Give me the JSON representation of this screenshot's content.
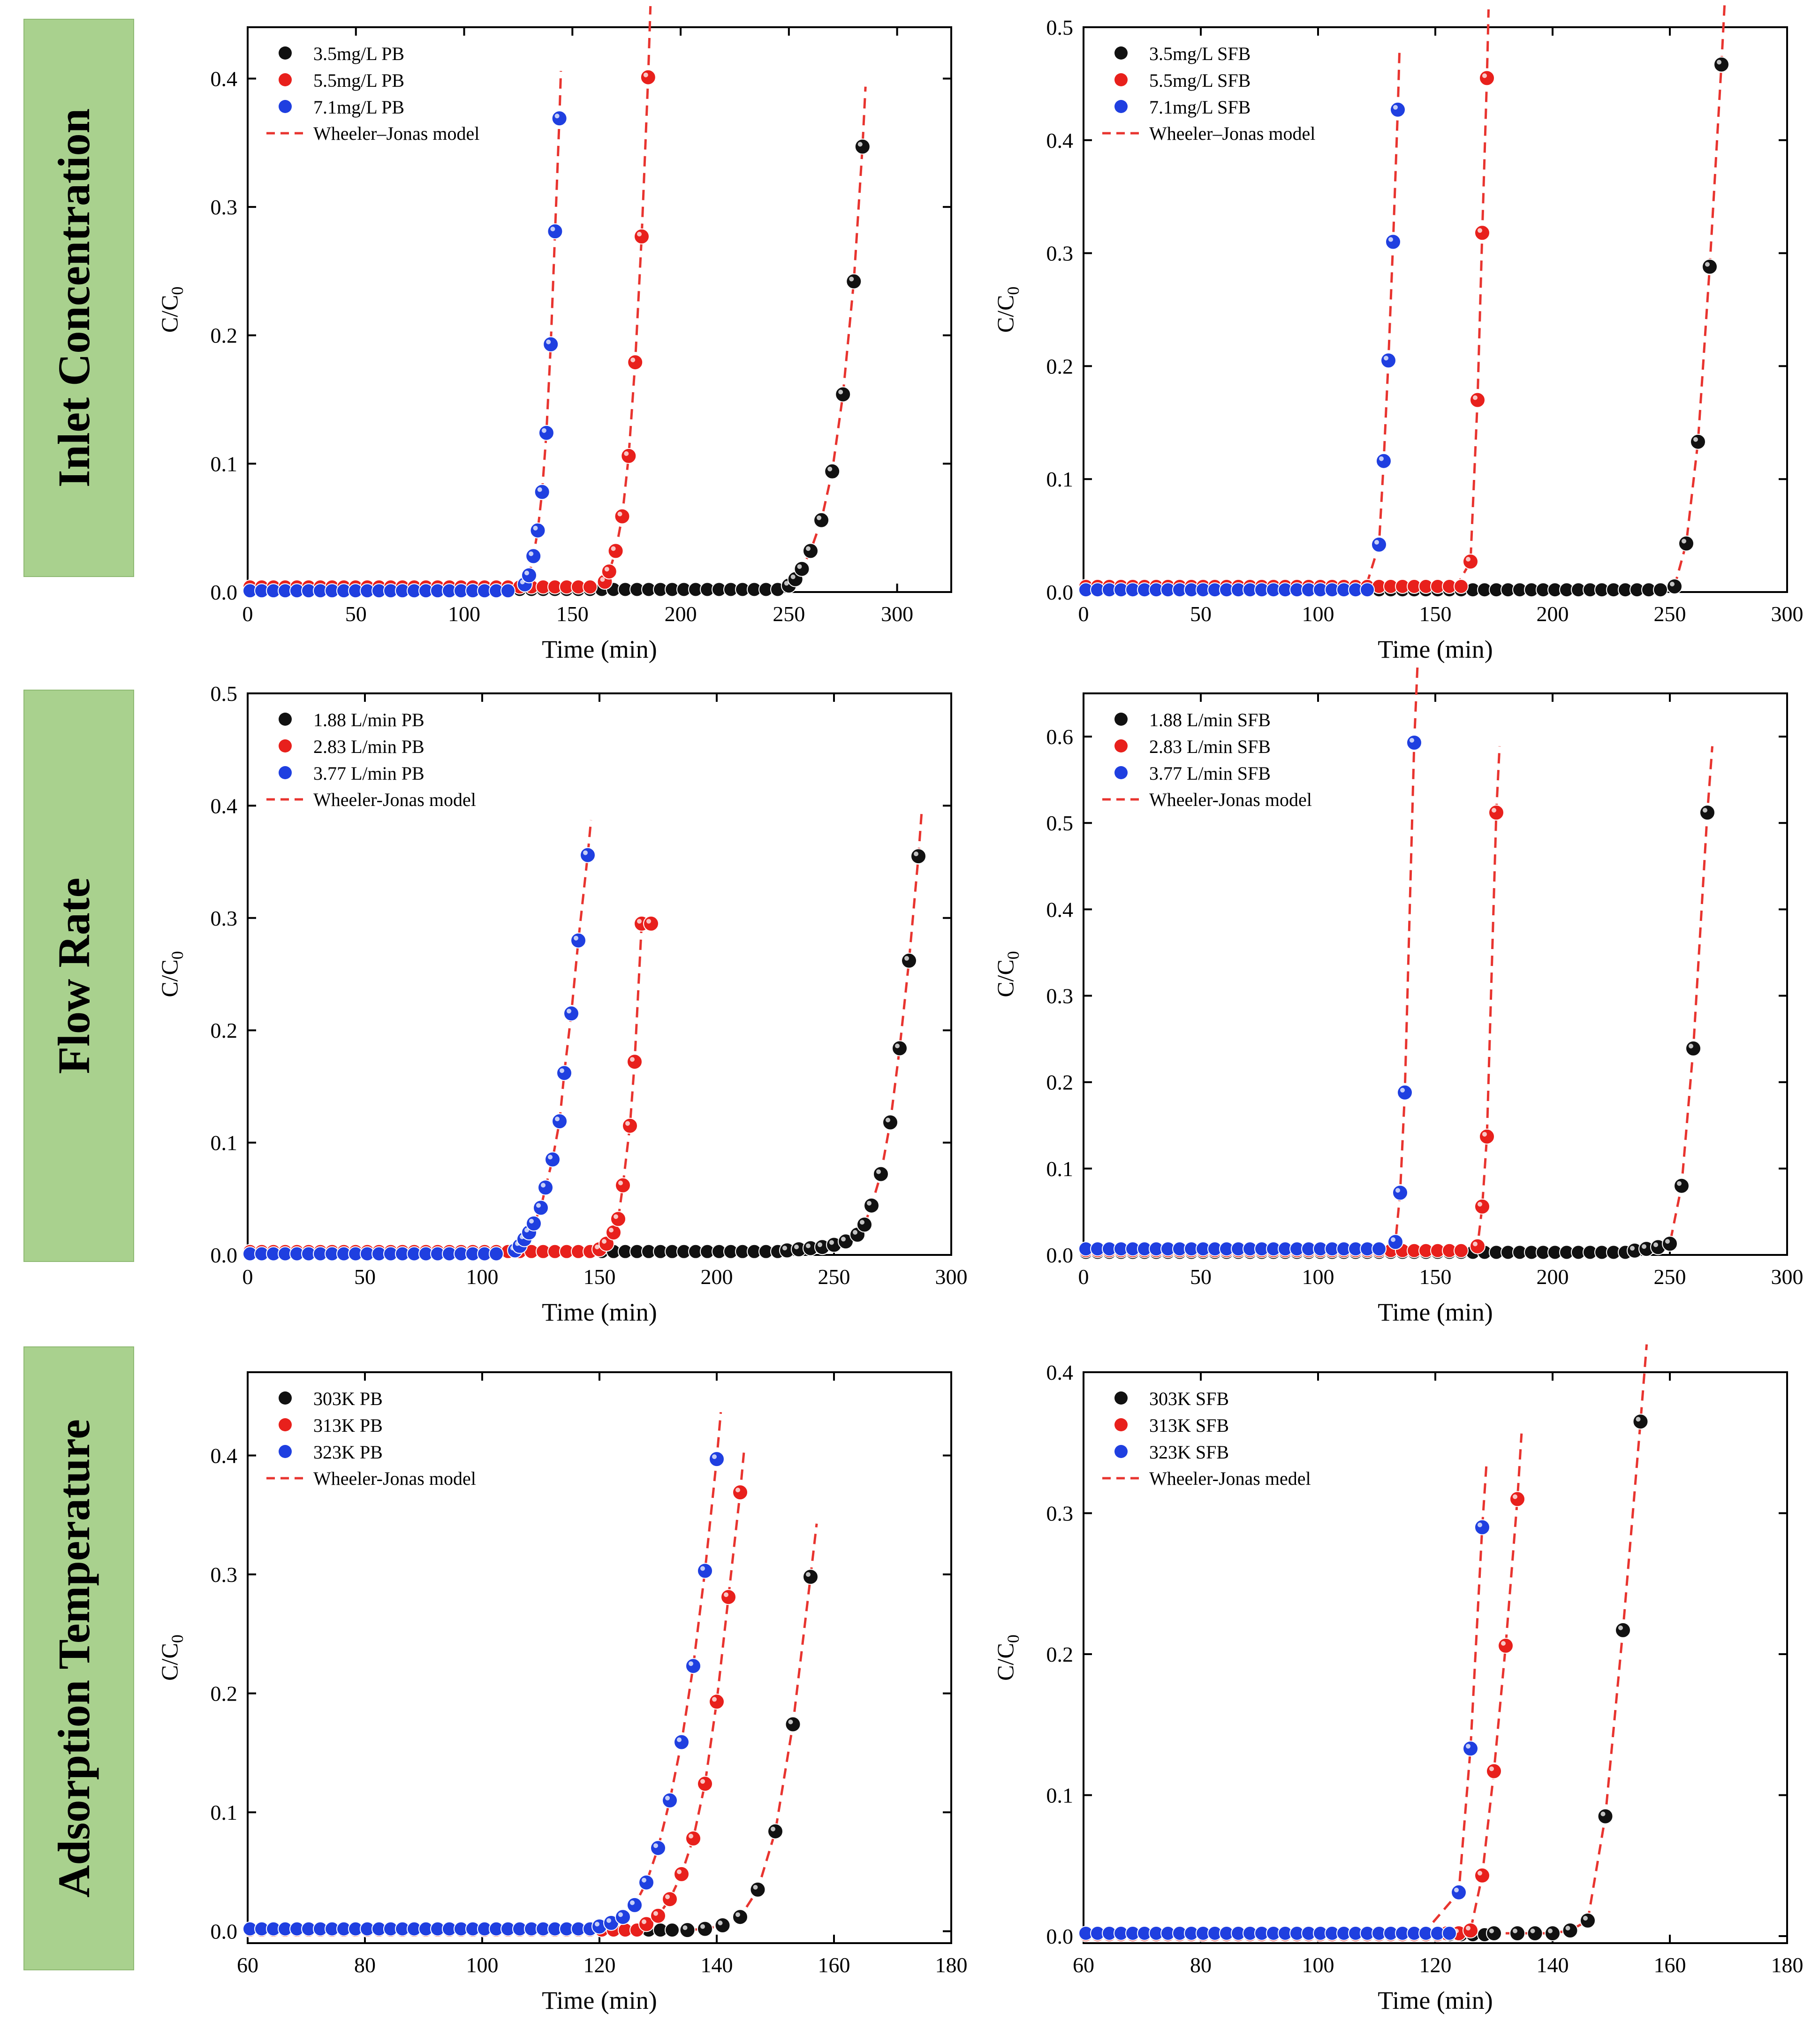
{
  "row_labels": [
    "Inlet Concentration",
    "Flow Rate",
    "Adsorption Temperature"
  ],
  "model_color": "#e8342f",
  "colors": {
    "black": "#111111",
    "red": "#e8201c",
    "blue": "#1f3fe0"
  },
  "chart_data": [
    {
      "id": "c11",
      "type": "scatter",
      "title": "",
      "xlabel": "Time (min)",
      "ylabel": "C/C0",
      "xlim": [
        0,
        325
      ],
      "ylim": [
        0,
        0.44
      ],
      "xticks": [
        0,
        50,
        100,
        150,
        200,
        250,
        300
      ],
      "yticks": [
        0.0,
        0.1,
        0.2,
        0.3,
        0.4
      ],
      "ytick_labels": [
        "0.0",
        "0.1",
        "0.2",
        "0.3",
        "0.4"
      ],
      "legend": [
        "3.5mg/L PB",
        "5.5mg/L PB",
        "7.1mg/L PB",
        "Wheeler–Jonas model"
      ],
      "series": [
        {
          "name": "3.5mg/L PB",
          "color": "black",
          "flat_start": 0,
          "flat_level": 0.002,
          "x": [
            250,
            253,
            256,
            260,
            265,
            270,
            275,
            280,
            284
          ],
          "y": [
            0.005,
            0.01,
            0.018,
            0.032,
            0.056,
            0.094,
            0.154,
            0.242,
            0.347
          ]
        },
        {
          "name": "5.5mg/L PB",
          "color": "red",
          "flat_start": 0,
          "flat_level": 0.004,
          "x": [
            165,
            167,
            170,
            173,
            176,
            179,
            182,
            185
          ],
          "y": [
            0.008,
            0.016,
            0.032,
            0.059,
            0.106,
            0.179,
            0.277,
            0.401
          ]
        },
        {
          "name": "7.1mg/L PB",
          "color": "blue",
          "flat_start": 0,
          "flat_level": 0.001,
          "x": [
            128,
            130,
            132,
            134,
            136,
            138,
            140,
            142,
            144
          ],
          "y": [
            0.006,
            0.013,
            0.028,
            0.048,
            0.078,
            0.124,
            0.193,
            0.281,
            0.369
          ]
        }
      ]
    },
    {
      "id": "c12",
      "type": "scatter",
      "title": "",
      "xlabel": "Time (min)",
      "ylabel": "C/C0",
      "xlim": [
        0,
        300
      ],
      "ylim": [
        0,
        0.5
      ],
      "xticks": [
        0,
        50,
        100,
        150,
        200,
        250,
        300
      ],
      "yticks": [
        0.0,
        0.1,
        0.2,
        0.3,
        0.4,
        0.5
      ],
      "ytick_labels": [
        "0.0",
        "0.1",
        "0.2",
        "0.3",
        "0.4",
        "0.5"
      ],
      "legend": [
        "3.5mg/L SFB",
        "5.5mg/L SFB",
        "7.1mg/L SFB",
        "Wheeler–Jonas model"
      ],
      "series": [
        {
          "name": "3.5mg/L SFB",
          "color": "black",
          "flat_start": 0,
          "flat_level": 0.002,
          "x": [
            252,
            257,
            262,
            267,
            272
          ],
          "y": [
            0.005,
            0.043,
            0.133,
            0.288,
            0.467
          ]
        },
        {
          "name": "5.5mg/L SFB",
          "color": "red",
          "flat_start": 0,
          "flat_level": 0.005,
          "x": [
            165,
            168,
            170,
            172
          ],
          "y": [
            0.027,
            0.17,
            0.318,
            0.455
          ]
        },
        {
          "name": "7.1mg/L SFB",
          "color": "blue",
          "flat_start": 0,
          "flat_level": 0.002,
          "x": [
            126,
            128,
            130,
            132,
            134
          ],
          "y": [
            0.042,
            0.116,
            0.205,
            0.31,
            0.427
          ]
        }
      ]
    },
    {
      "id": "c21",
      "type": "scatter",
      "title": "",
      "xlabel": "Time (min)",
      "ylabel": "C/C0",
      "xlim": [
        0,
        300
      ],
      "ylim": [
        0,
        0.5
      ],
      "xticks": [
        0,
        50,
        100,
        150,
        200,
        250,
        300
      ],
      "yticks": [
        0.0,
        0.1,
        0.2,
        0.3,
        0.4,
        0.5
      ],
      "ytick_labels": [
        "0.0",
        "0.1",
        "0.2",
        "0.3",
        "0.4",
        "0.5"
      ],
      "legend": [
        "1.88 L/min PB",
        "2.83 L/min PB",
        "3.77 L/min PB",
        "Wheeler-Jonas model"
      ],
      "series": [
        {
          "name": "1.88 L/min PB",
          "color": "black",
          "flat_start": 0,
          "flat_level": 0.003,
          "x": [
            230,
            235,
            240,
            245,
            250,
            255,
            260,
            263,
            266,
            270,
            274,
            278,
            282,
            286
          ],
          "y": [
            0.004,
            0.005,
            0.006,
            0.007,
            0.009,
            0.012,
            0.018,
            0.027,
            0.044,
            0.072,
            0.118,
            0.184,
            0.262,
            0.355
          ]
        },
        {
          "name": "2.83 L/min PB",
          "color": "red",
          "flat_start": 0,
          "flat_level": 0.003,
          "x": [
            150,
            153,
            156,
            158,
            160,
            163,
            165,
            168,
            172
          ],
          "y": [
            0.005,
            0.01,
            0.02,
            0.032,
            0.062,
            0.115,
            0.172,
            0.295,
            0.295
          ]
        },
        {
          "name": "3.77 L/min PB",
          "color": "blue",
          "flat_start": 0,
          "flat_level": 0.001,
          "x": [
            114,
            116,
            118,
            120,
            122,
            125,
            127,
            130,
            133,
            135,
            138,
            141,
            145
          ],
          "y": [
            0.004,
            0.008,
            0.014,
            0.02,
            0.028,
            0.042,
            0.06,
            0.085,
            0.119,
            0.162,
            0.215,
            0.28,
            0.356
          ]
        }
      ]
    },
    {
      "id": "c22",
      "type": "scatter",
      "title": "",
      "xlabel": "Time (min)",
      "ylabel": "C/C0",
      "xlim": [
        0,
        300
      ],
      "ylim": [
        0,
        0.65
      ],
      "xticks": [
        0,
        50,
        100,
        150,
        200,
        250,
        300
      ],
      "yticks": [
        0.0,
        0.1,
        0.2,
        0.3,
        0.4,
        0.5,
        0.6
      ],
      "ytick_labels": [
        "0.0",
        "0.1",
        "0.2",
        "0.3",
        "0.4",
        "0.5",
        "0.6"
      ],
      "legend": [
        "1.88 L/min SFB",
        "2.83 L/min SFB",
        "3.77 L/min SFB",
        "Wheeler-Jonas model"
      ],
      "series": [
        {
          "name": "1.88 L/min SFB",
          "color": "black",
          "flat_start": 0,
          "flat_level": 0.003,
          "x": [
            235,
            240,
            245,
            250,
            255,
            260,
            266
          ],
          "y": [
            0.005,
            0.007,
            0.009,
            0.013,
            0.08,
            0.239,
            0.512
          ]
        },
        {
          "name": "2.83 L/min SFB",
          "color": "red",
          "flat_start": 0,
          "flat_level": 0.005,
          "x": [
            168,
            170,
            172,
            176
          ],
          "y": [
            0.01,
            0.056,
            0.137,
            0.512
          ]
        },
        {
          "name": "3.77 L/min SFB",
          "color": "blue",
          "flat_start": 0,
          "flat_level": 0.007,
          "x": [
            133,
            135,
            137,
            141
          ],
          "y": [
            0.015,
            0.072,
            0.188,
            0.593
          ]
        }
      ]
    },
    {
      "id": "c31",
      "type": "scatter",
      "title": "",
      "xlabel": "Time (min)",
      "ylabel": "C/C0",
      "xlim": [
        60,
        180
      ],
      "ylim": [
        -0.01,
        0.47
      ],
      "xticks": [
        60,
        80,
        100,
        120,
        140,
        160,
        180
      ],
      "yticks": [
        0.0,
        0.1,
        0.2,
        0.3,
        0.4
      ],
      "ytick_labels": [
        "0.0",
        "0.1",
        "0.2",
        "0.3",
        "0.4"
      ],
      "legend": [
        "303K PB",
        "313K PB",
        "323K PB",
        "Wheeler-Jonas model"
      ],
      "series": [
        {
          "name": "303K PB",
          "color": "black",
          "flat_start": 60,
          "flat_level": 0.001,
          "x": [
            135,
            138,
            141,
            144,
            147,
            150,
            153,
            156
          ],
          "y": [
            0.001,
            0.002,
            0.005,
            0.012,
            0.035,
            0.084,
            0.174,
            0.298
          ]
        },
        {
          "name": "313K PB",
          "color": "red",
          "flat_start": 60,
          "flat_level": 0.001,
          "x": [
            128,
            130,
            132,
            134,
            136,
            138,
            140,
            142,
            144
          ],
          "y": [
            0.006,
            0.013,
            0.027,
            0.048,
            0.078,
            0.124,
            0.193,
            0.281,
            0.369
          ]
        },
        {
          "name": "323K PB",
          "color": "blue",
          "flat_start": 60,
          "flat_level": 0.002,
          "x": [
            120,
            122,
            124,
            126,
            128,
            130,
            132,
            134,
            136,
            138,
            140
          ],
          "y": [
            0.004,
            0.007,
            0.012,
            0.022,
            0.041,
            0.07,
            0.11,
            0.159,
            0.223,
            0.303,
            0.397
          ]
        }
      ]
    },
    {
      "id": "c32",
      "type": "scatter",
      "title": "",
      "xlabel": "Time (min)",
      "ylabel": "C/C0",
      "xlim": [
        60,
        180
      ],
      "ylim": [
        -0.005,
        0.4
      ],
      "xticks": [
        60,
        80,
        100,
        120,
        140,
        160,
        180
      ],
      "yticks": [
        0.0,
        0.1,
        0.2,
        0.3,
        0.4
      ],
      "ytick_labels": [
        "0.0",
        "0.1",
        "0.2",
        "0.3",
        "0.4"
      ],
      "legend": [
        "303K SFB",
        "313K SFB",
        "323K SFB",
        "Wheeler-Jonas medel"
      ],
      "series": [
        {
          "name": "303K SFB",
          "color": "black",
          "flat_start": 60,
          "flat_level": 0.001,
          "x": [
            130,
            134,
            137,
            140,
            143,
            146,
            149,
            152,
            155
          ],
          "y": [
            0.002,
            0.002,
            0.002,
            0.002,
            0.004,
            0.011,
            0.085,
            0.217,
            0.365
          ]
        },
        {
          "name": "313K SFB",
          "color": "red",
          "flat_start": 60,
          "flat_level": 0.001,
          "x": [
            122,
            124,
            126,
            128,
            130,
            132,
            134
          ],
          "y": [
            0.002,
            0.002,
            0.004,
            0.043,
            0.117,
            0.206,
            0.31
          ]
        },
        {
          "name": "323K SFB",
          "color": "blue",
          "flat_start": 60,
          "flat_level": 0.002,
          "x": [
            124,
            126,
            128
          ],
          "y": [
            0.031,
            0.133,
            0.29
          ]
        }
      ]
    }
  ]
}
